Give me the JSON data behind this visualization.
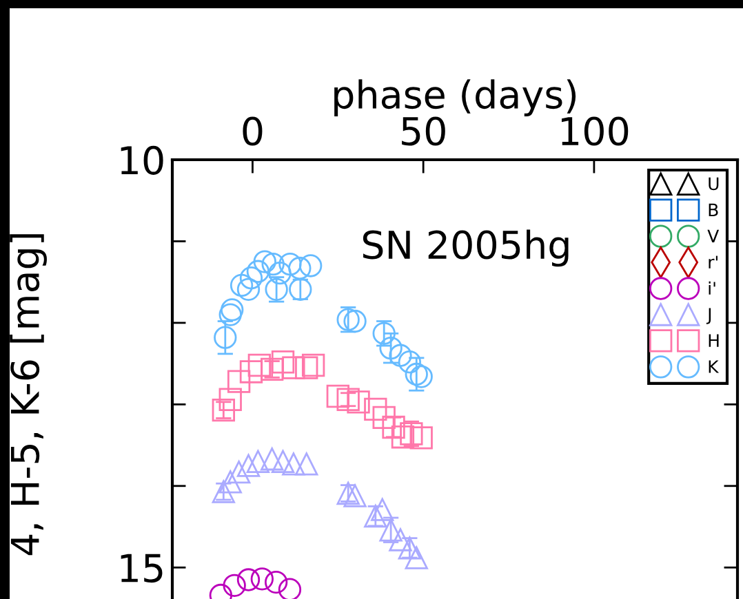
{
  "chart_data": {
    "type": "scatter",
    "xlabel": "phase (days)",
    "ylabel": "4, H-5, K-6 [mag]",
    "annotations": [
      "SN 2005hg"
    ],
    "xlim": [
      -23.5,
      142
    ],
    "xticks": [
      0,
      50,
      100
    ],
    "ylim": [
      15.42,
      10
    ],
    "yticks": [
      10,
      {
        "value": 11,
        "label": null
      },
      {
        "value": 12,
        "label": null
      },
      {
        "value": 13,
        "label": null
      },
      {
        "value": 14,
        "label": null
      },
      15
    ],
    "legend": "top right",
    "grid": false,
    "series": [
      {
        "name": "U",
        "color": "#000000",
        "marker": "triangle"
      },
      {
        "name": "B",
        "color": "#0066cc",
        "marker": "square"
      },
      {
        "name": "V",
        "color": "#33aa66",
        "marker": "circle"
      },
      {
        "name": "r'",
        "color": "#bb0000",
        "marker": "diamond"
      },
      {
        "name": "i'",
        "color": "#bb00bb",
        "marker": "circle",
        "x": [
          -9.3,
          -5.3,
          -1.2,
          2.8,
          6.9,
          10.9
        ],
        "values": [
          15.34,
          15.22,
          15.15,
          15.14,
          15.18,
          15.27
        ]
      },
      {
        "name": "J",
        "color": "#aaaaff",
        "marker": "triangle",
        "x": [
          -8.5,
          -6.5,
          -4,
          -1.2,
          1.6,
          5.7,
          8.9,
          12,
          15.8,
          28,
          30,
          36,
          38,
          40.5,
          43.3,
          46,
          48
        ],
        "values": [
          14.07,
          13.95,
          13.83,
          13.75,
          13.7,
          13.67,
          13.7,
          13.73,
          13.73,
          14.09,
          14.12,
          14.37,
          14.29,
          14.54,
          14.66,
          14.76,
          14.88
        ],
        "errors": [
          0.1,
          null,
          null,
          null,
          null,
          null,
          null,
          null,
          null,
          0.1,
          null,
          0.12,
          null,
          0.15,
          null,
          0.12,
          null
        ]
      },
      {
        "name": "H",
        "color": "#ff77aa",
        "marker": "square",
        "x": [
          -8.5,
          -6.5,
          -4,
          -0.4,
          2,
          5.7,
          8.9,
          12,
          15.8,
          17.8,
          25,
          28,
          31,
          36,
          38.5,
          41.3,
          44,
          46.5,
          49.4
        ],
        "values": [
          13.07,
          12.94,
          12.72,
          12.6,
          12.52,
          12.57,
          12.48,
          12.55,
          12.55,
          12.52,
          12.9,
          12.94,
          12.97,
          13.06,
          13.16,
          13.28,
          13.4,
          13.36,
          13.41
        ],
        "errors": [
          0.1,
          null,
          null,
          null,
          null,
          0.1,
          null,
          null,
          null,
          null,
          null,
          0.08,
          null,
          null,
          null,
          0.12,
          null,
          0.15,
          null
        ]
      },
      {
        "name": "K",
        "color": "#66bbff",
        "marker": "circle",
        "x": [
          -8,
          -6.5,
          -6,
          -3.2,
          -1.2,
          -0.4,
          1.6,
          3.6,
          6,
          7,
          8,
          11,
          13.8,
          14,
          17,
          28,
          30,
          38.5,
          40.5,
          43.3,
          46,
          48,
          49.4
        ],
        "values": [
          12.18,
          11.9,
          11.84,
          11.54,
          11.59,
          11.45,
          11.37,
          11.25,
          11.28,
          11.59,
          11.39,
          11.28,
          11.33,
          11.59,
          11.3,
          11.96,
          11.98,
          12.13,
          12.31,
          12.4,
          12.48,
          12.63,
          12.66
        ],
        "errors": [
          0.2,
          null,
          null,
          null,
          null,
          null,
          null,
          null,
          null,
          0.15,
          null,
          null,
          null,
          0.12,
          null,
          0.15,
          null,
          0.15,
          0.18,
          null,
          null,
          0.2,
          null
        ]
      }
    ]
  }
}
